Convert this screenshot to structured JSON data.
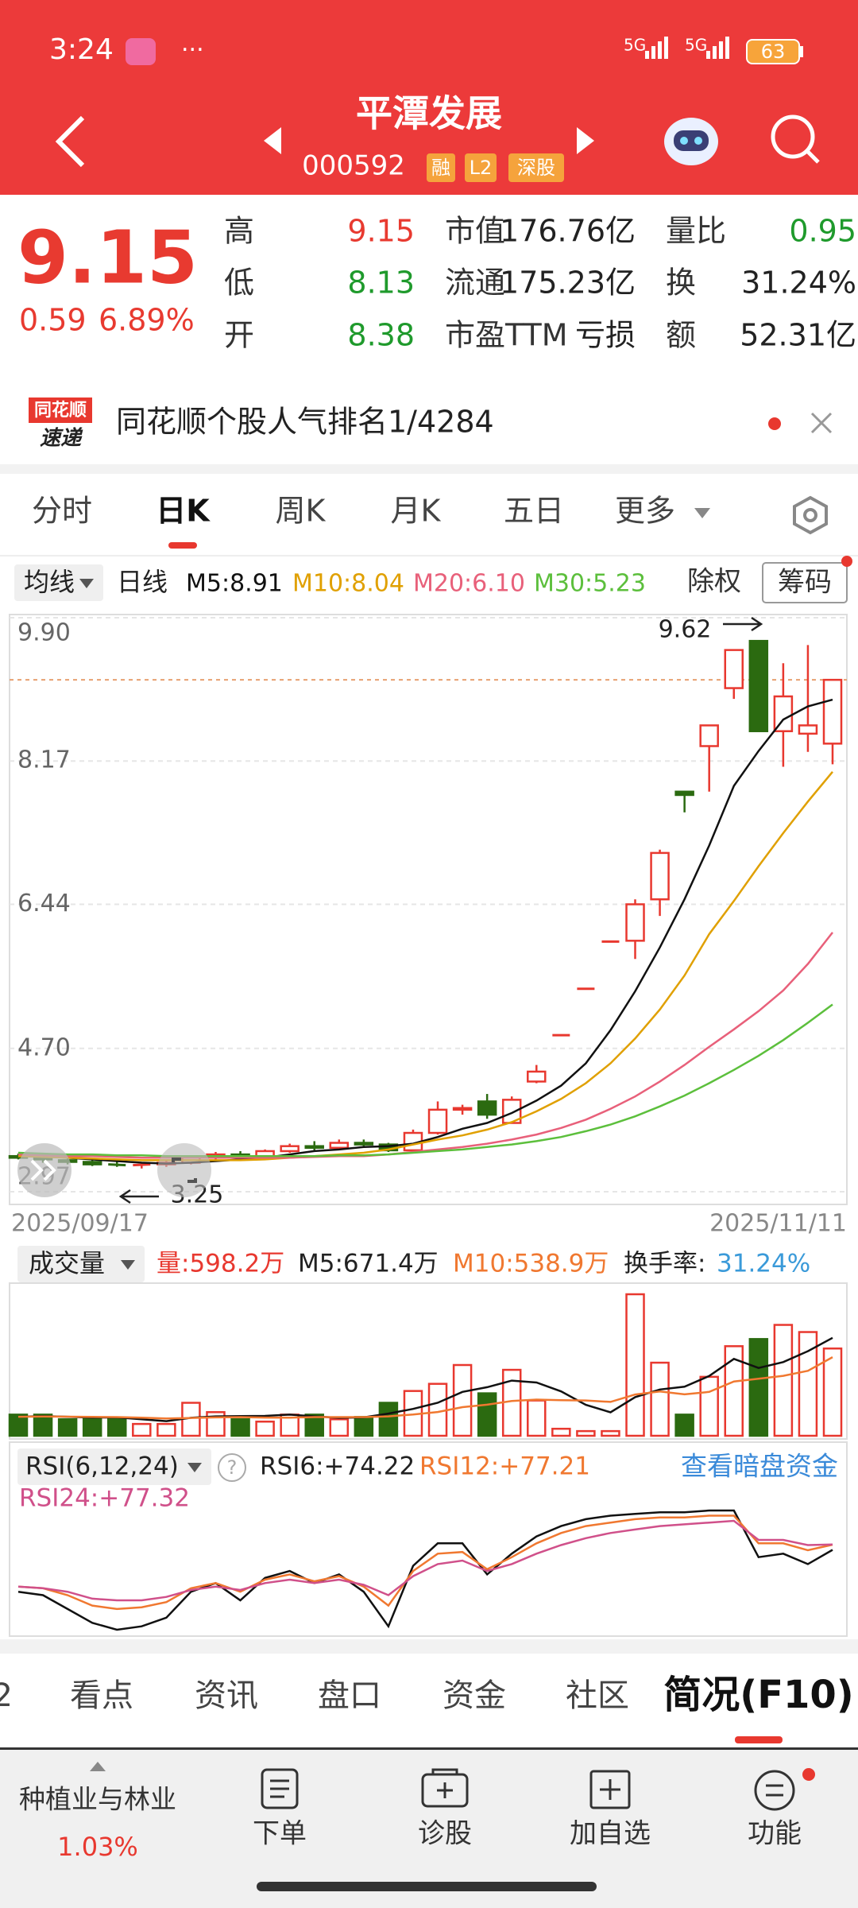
{
  "status_bar": {
    "time": "3:24",
    "dots": "···",
    "net": [
      "5G",
      "5G"
    ],
    "battery": "63"
  },
  "header": {
    "title": "平潭发展",
    "code": "000592",
    "tags": [
      "融",
      "L2",
      "深股"
    ]
  },
  "quote": {
    "price": "9.15",
    "change": "0.59",
    "change_pct": "6.89%",
    "fields": [
      {
        "label": "高",
        "value": "9.15"
      },
      {
        "label": "低",
        "value": "8.13"
      },
      {
        "label": "开",
        "value": "8.38"
      },
      {
        "label": "市值",
        "value": "176.76亿"
      },
      {
        "label": "流通",
        "value": "175.23亿"
      },
      {
        "label": "市盈TTM",
        "value": "亏损"
      },
      {
        "label": "量比",
        "value": "0.95"
      },
      {
        "label": "换",
        "value": "31.24%"
      },
      {
        "label": "额",
        "value": "52.31亿"
      }
    ]
  },
  "banner": {
    "logo": [
      "同花顺",
      "速递"
    ],
    "text": "同花顺个股人气排名1/4284"
  },
  "tabs": [
    "分时",
    "日K",
    "周K",
    "月K",
    "五日",
    "更多"
  ],
  "toolbar": {
    "ma_select": "均线",
    "period": "日线",
    "ma_labels": [
      "M5:8.91",
      "M10:8.04",
      "M20:6.10",
      "M30:5.23"
    ],
    "buttons": [
      "除权",
      "筹码"
    ]
  },
  "kline": {
    "type": "candlestick",
    "ylim": [
      2.97,
      9.9
    ],
    "yticks": [
      {
        "value": 9.9,
        "label": "9.90"
      },
      8.17,
      6.44,
      {
        "value": 4.7,
        "label": "4.70"
      },
      2.97
    ],
    "x_labels": [
      "2025/09/17",
      "2025/11/11"
    ],
    "annotations": [
      "9.62",
      "3.25"
    ],
    "open": [
      3.4,
      3.38,
      3.35,
      3.33,
      3.3,
      3.29,
      3.3,
      3.32,
      3.38,
      3.42,
      3.4,
      3.46,
      3.52,
      3.5,
      3.56,
      3.54,
      3.47,
      3.68,
      3.96,
      4.06,
      3.8,
      4.3,
      4.86,
      5.42,
      5.99,
      6.0,
      6.5,
      7.8,
      8.35,
      9.05,
      9.62,
      8.53,
      8.5,
      8.38
    ],
    "high": [
      3.43,
      3.42,
      3.38,
      3.36,
      3.34,
      3.31,
      3.34,
      3.4,
      3.45,
      3.46,
      3.48,
      3.55,
      3.58,
      3.6,
      3.6,
      3.56,
      3.72,
      4.06,
      4.02,
      4.15,
      4.12,
      4.5,
      4.86,
      5.42,
      5.99,
      6.5,
      7.1,
      7.8,
      8.6,
      9.51,
      9.62,
      9.35,
      9.57,
      9.15
    ],
    "low": [
      3.36,
      3.32,
      3.3,
      3.28,
      3.27,
      3.25,
      3.27,
      3.3,
      3.35,
      3.38,
      3.38,
      3.44,
      3.47,
      3.48,
      3.5,
      3.45,
      3.46,
      3.66,
      3.9,
      3.85,
      3.8,
      4.28,
      4.86,
      5.42,
      5.99,
      5.78,
      6.3,
      7.55,
      7.8,
      8.92,
      8.53,
      8.1,
      8.28,
      8.13
    ],
    "close": [
      3.38,
      3.36,
      3.33,
      3.3,
      3.29,
      3.3,
      3.32,
      3.38,
      3.42,
      3.4,
      3.46,
      3.52,
      3.5,
      3.56,
      3.54,
      3.47,
      3.68,
      3.96,
      3.98,
      3.9,
      4.08,
      4.42,
      4.86,
      5.42,
      5.99,
      6.44,
      7.06,
      7.76,
      8.6,
      9.51,
      8.53,
      8.95,
      8.6,
      9.15
    ],
    "ma_lines": [
      {
        "color": "#111111",
        "values": [
          3.41,
          3.4,
          3.38,
          3.36,
          3.34,
          3.32,
          3.31,
          3.32,
          3.34,
          3.36,
          3.38,
          3.42,
          3.46,
          3.48,
          3.51,
          3.52,
          3.55,
          3.63,
          3.73,
          3.8,
          3.92,
          4.07,
          4.25,
          4.52,
          4.92,
          5.39,
          5.92,
          6.5,
          7.15,
          7.87,
          8.29,
          8.67,
          8.83,
          8.91
        ]
      },
      {
        "color": "#e0a000",
        "values": [
          3.4,
          3.39,
          3.38,
          3.37,
          3.36,
          3.35,
          3.35,
          3.35,
          3.35,
          3.35,
          3.36,
          3.38,
          3.4,
          3.42,
          3.44,
          3.48,
          3.54,
          3.6,
          3.65,
          3.72,
          3.81,
          3.94,
          4.09,
          4.28,
          4.52,
          4.82,
          5.17,
          5.58,
          6.08,
          6.48,
          6.9,
          7.3,
          7.68,
          8.04
        ]
      },
      {
        "color": "#e8607a",
        "values": [
          3.42,
          3.41,
          3.4,
          3.4,
          3.39,
          3.38,
          3.38,
          3.38,
          3.38,
          3.38,
          3.38,
          3.38,
          3.39,
          3.4,
          3.4,
          3.42,
          3.45,
          3.48,
          3.51,
          3.55,
          3.6,
          3.66,
          3.74,
          3.84,
          3.97,
          4.12,
          4.3,
          4.5,
          4.72,
          4.93,
          5.15,
          5.4,
          5.72,
          6.1
        ]
      },
      {
        "color": "#5cbf3c",
        "values": [
          3.44,
          3.43,
          3.42,
          3.42,
          3.41,
          3.41,
          3.4,
          3.4,
          3.4,
          3.4,
          3.4,
          3.4,
          3.4,
          3.41,
          3.41,
          3.42,
          3.44,
          3.46,
          3.48,
          3.51,
          3.54,
          3.58,
          3.63,
          3.7,
          3.78,
          3.88,
          4.0,
          4.13,
          4.28,
          4.44,
          4.61,
          4.8,
          5.01,
          5.23
        ]
      }
    ]
  },
  "volume": {
    "select": "成交量",
    "labels": [
      "量:598.2万",
      "M5:671.4万",
      "M10:538.9万"
    ],
    "turnover": {
      "label": "换手率:",
      "value": "31.24%"
    },
    "values": [
      145,
      145,
      113,
      113,
      113,
      81,
      81,
      226,
      162,
      113,
      97,
      145,
      145,
      113,
      129,
      226,
      307,
      356,
      485,
      291,
      452,
      242,
      48,
      32,
      32,
      970,
      501,
      145,
      404,
      614,
      663,
      760,
      711,
      598.2
    ],
    "ma5": [
      130,
      135,
      130,
      125,
      126,
      113,
      100,
      123,
      133,
      135,
      136,
      145,
      133,
      123,
      126,
      152,
      184,
      226,
      301,
      333,
      378,
      365,
      304,
      212,
      161,
      265,
      317,
      336,
      410,
      527,
      465,
      505,
      580,
      671.4
    ],
    "ma10": [
      130,
      132,
      131,
      129,
      128,
      124,
      118,
      122,
      126,
      128,
      125,
      124,
      128,
      128,
      128,
      133,
      146,
      163,
      196,
      213,
      238,
      248,
      244,
      242,
      232,
      283,
      304,
      284,
      301,
      372,
      391,
      411,
      445,
      538.9
    ]
  },
  "rsi": {
    "select": "RSI(6,12,24)",
    "help": "?",
    "labels": [
      "RSI6:+74.22",
      "RSI12:+77.21",
      "RSI24:+77.32"
    ],
    "link": "查看暗盘资金",
    "series": [
      {
        "color": "#111111",
        "values": [
          50,
          48,
          40,
          32,
          28,
          30,
          35,
          50,
          55,
          45,
          58,
          62,
          55,
          60,
          50,
          30,
          65,
          78,
          78,
          60,
          72,
          82,
          88,
          92,
          94,
          95,
          96,
          96,
          97,
          97,
          70,
          72,
          66,
          74.22
        ]
      },
      {
        "color": "#f07830",
        "values": [
          53,
          52,
          48,
          42,
          40,
          41,
          44,
          52,
          55,
          50,
          57,
          60,
          56,
          59,
          53,
          42,
          62,
          72,
          73,
          63,
          70,
          78,
          84,
          88,
          90,
          92,
          93,
          93,
          94,
          94,
          78,
          78,
          74,
          77.21
        ]
      },
      {
        "color": "#d0508a",
        "values": [
          53,
          52,
          50,
          46,
          45,
          45,
          47,
          51,
          53,
          51,
          55,
          57,
          55,
          57,
          54,
          48,
          59,
          66,
          68,
          62,
          66,
          72,
          77,
          81,
          84,
          86,
          88,
          89,
          90,
          91,
          80,
          80,
          77,
          77.32
        ]
      }
    ]
  },
  "bottom_tabs": [
    "2",
    "看点",
    "资讯",
    "盘口",
    "资金",
    "社区",
    "简况(F10)"
  ],
  "bottom_nav": {
    "sector": "种植业与林业",
    "sector_change": "1.03%",
    "items": [
      "下单",
      "诊股",
      "加自选",
      "功能"
    ]
  }
}
